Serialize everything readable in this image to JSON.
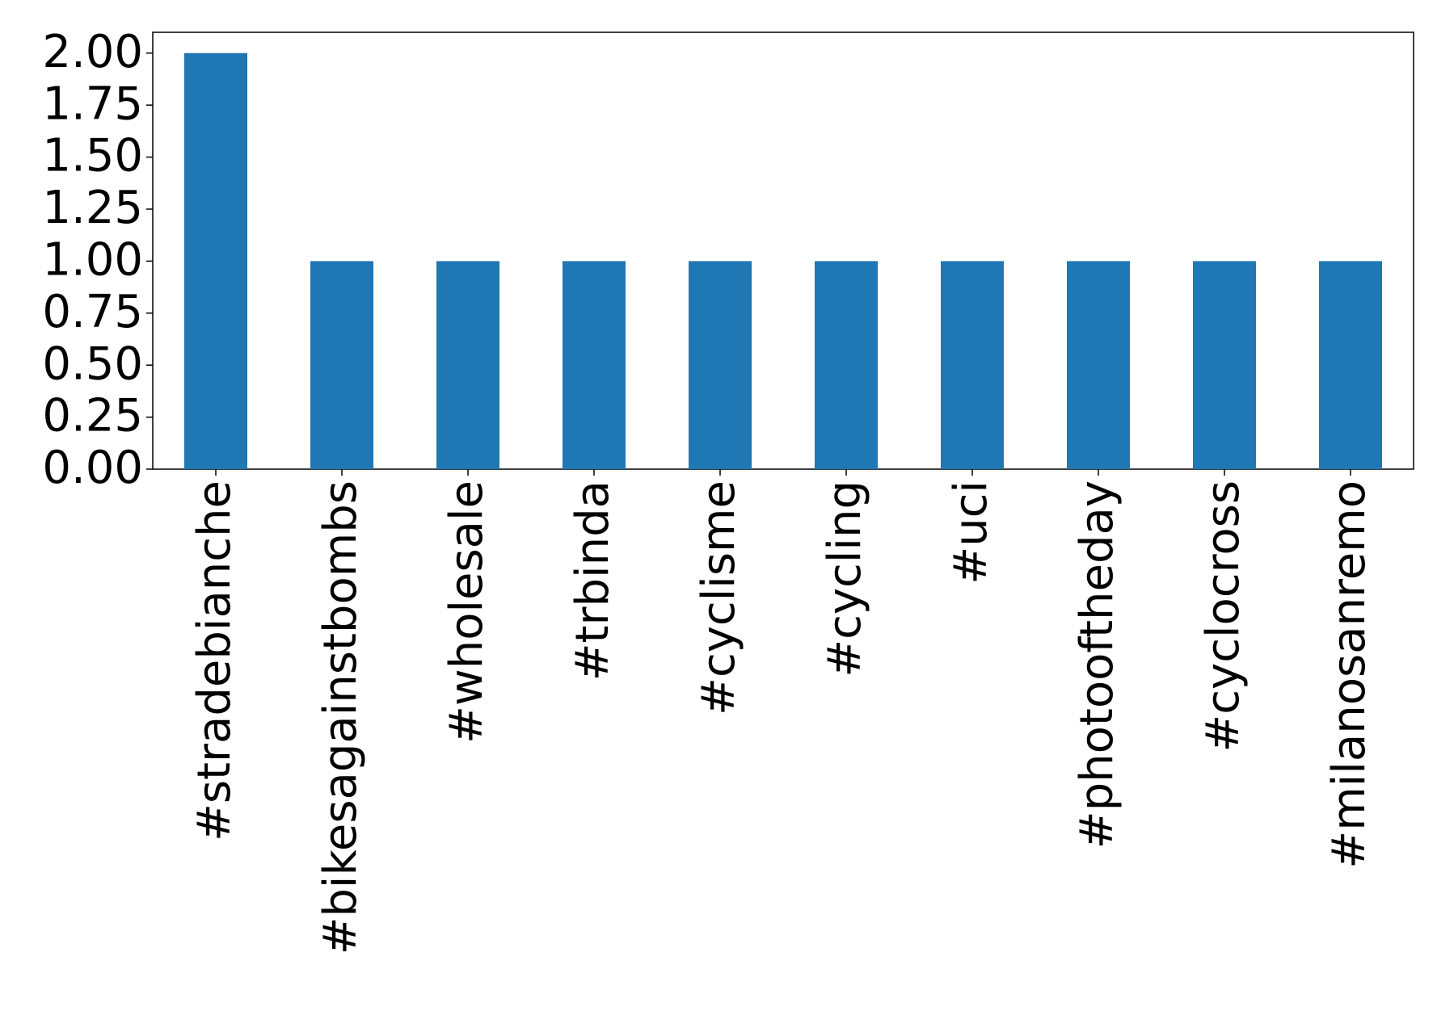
{
  "chart_data": {
    "type": "bar",
    "categories": [
      "#stradebianche",
      "#bikesagainstbombs",
      "#wholesale",
      "#trbinda",
      "#cyclisme",
      "#cycling",
      "#uci",
      "#photooftheday",
      "#cyclocross",
      "#milanosanremo"
    ],
    "values": [
      2,
      1,
      1,
      1,
      1,
      1,
      1,
      1,
      1,
      1
    ],
    "color": "#1f77b4",
    "ylim": [
      0,
      2.1
    ],
    "yticks": [
      {
        "value": 0,
        "label": "0.00"
      },
      {
        "value": 0.25,
        "label": "0.25"
      },
      {
        "value": 0.5,
        "label": "0.50"
      },
      {
        "value": 0.75,
        "label": "0.75"
      },
      {
        "value": 1,
        "label": "1.00"
      },
      {
        "value": 1.25,
        "label": "1.25"
      },
      {
        "value": 1.5,
        "label": "1.50"
      },
      {
        "value": 1.75,
        "label": "1.75"
      },
      {
        "value": 2,
        "label": "2.00"
      }
    ],
    "grid": false
  }
}
